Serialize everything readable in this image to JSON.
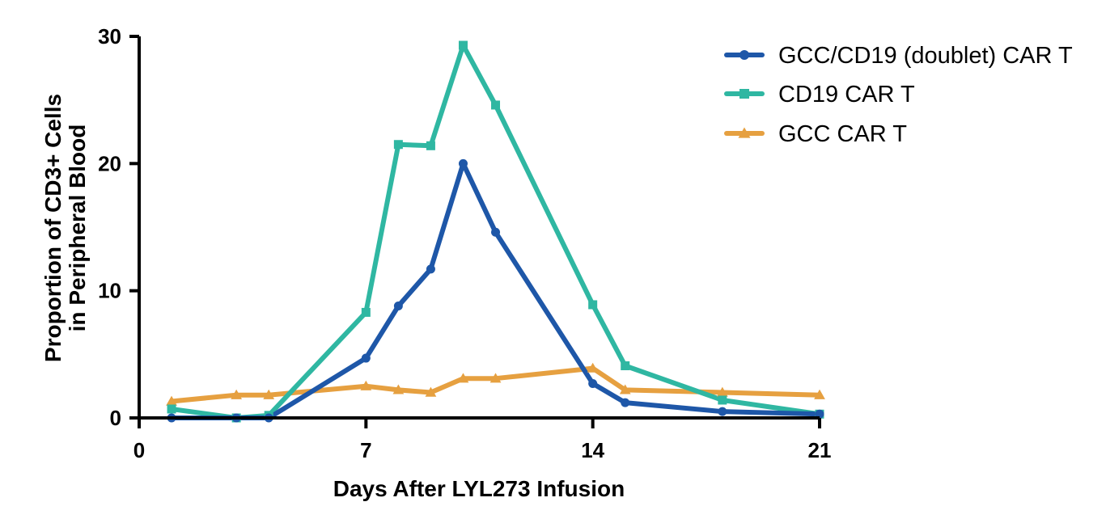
{
  "chart_data": {
    "type": "line",
    "title": "",
    "xlabel": "Days After LYL273 Infusion",
    "ylabel": [
      "Proportion of CD3+ Cells",
      "in Peripheral Blood"
    ],
    "xlim": [
      0,
      21
    ],
    "ylim": [
      0,
      30
    ],
    "xticks": [
      0,
      7,
      14,
      21
    ],
    "yticks": [
      0,
      10,
      20,
      30
    ],
    "grid": false,
    "legend_position": "top-right",
    "series": [
      {
        "name": "GCC/CD19 (doublet) CAR T",
        "color": "#1e57a8",
        "marker": "circle",
        "x": [
          1,
          3,
          4,
          7,
          8,
          9,
          10,
          11,
          14,
          15,
          18,
          21
        ],
        "y": [
          0.0,
          0.0,
          0.0,
          4.7,
          8.8,
          11.7,
          20.0,
          14.6,
          2.7,
          1.2,
          0.5,
          0.3
        ]
      },
      {
        "name": "CD19 CAR T",
        "color": "#2fb7a2",
        "marker": "square",
        "x": [
          1,
          3,
          4,
          7,
          8,
          9,
          10,
          11,
          14,
          15,
          18,
          21
        ],
        "y": [
          0.7,
          0.0,
          0.2,
          8.3,
          21.5,
          21.4,
          29.3,
          24.6,
          8.9,
          4.1,
          1.4,
          0.3
        ]
      },
      {
        "name": "GCC CAR T",
        "color": "#e6a040",
        "marker": "triangle",
        "x": [
          1,
          3,
          4,
          7,
          8,
          9,
          10,
          11,
          14,
          15,
          18,
          21
        ],
        "y": [
          1.3,
          1.8,
          1.8,
          2.5,
          2.2,
          2.0,
          3.1,
          3.1,
          3.9,
          2.2,
          2.0,
          1.8
        ]
      }
    ]
  }
}
